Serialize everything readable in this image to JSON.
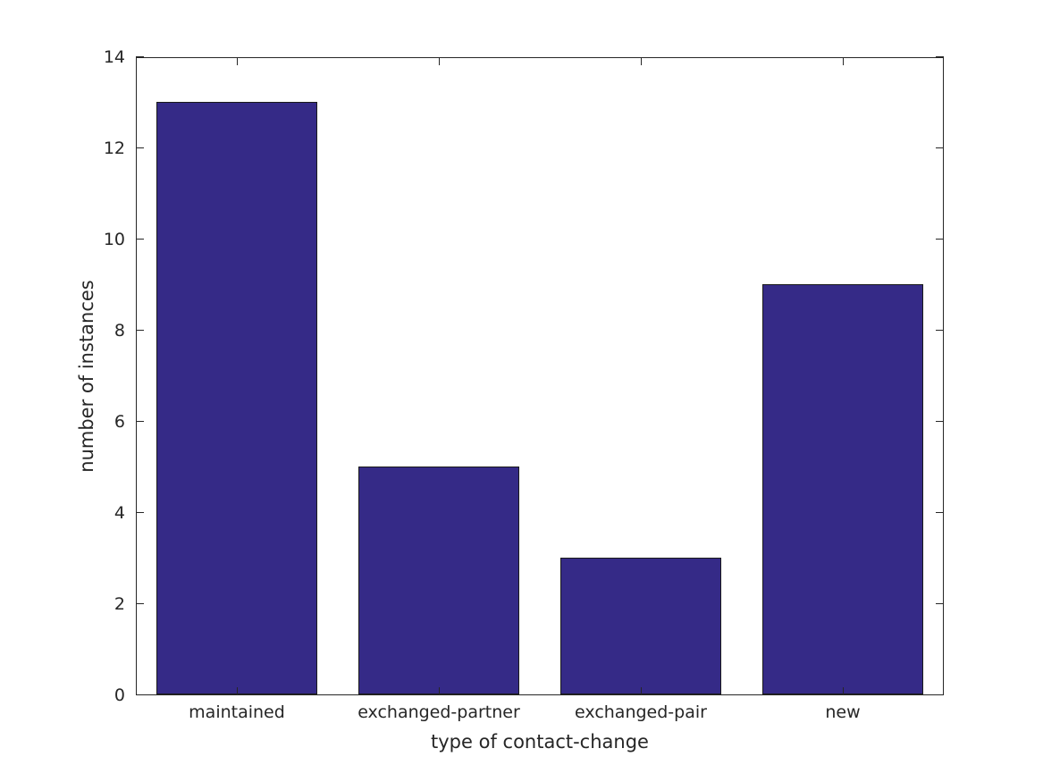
{
  "chart_data": {
    "type": "bar",
    "categories": [
      "maintained",
      "exchanged-partner",
      "exchanged-pair",
      "new"
    ],
    "values": [
      13,
      5,
      3,
      9
    ],
    "title": "",
    "xlabel": "type of contact-change",
    "ylabel": "number of instances",
    "ylim": [
      0,
      14
    ],
    "yticks": [
      0,
      2,
      4,
      6,
      8,
      10,
      12,
      14
    ],
    "legend": null,
    "grid": false,
    "bar_width_fraction": 0.8,
    "colors": {
      "bar_fill": "#352a87",
      "bar_edge": "#1a1a1a",
      "axis": "#262626",
      "text": "#262626",
      "background": "#ffffff"
    }
  }
}
